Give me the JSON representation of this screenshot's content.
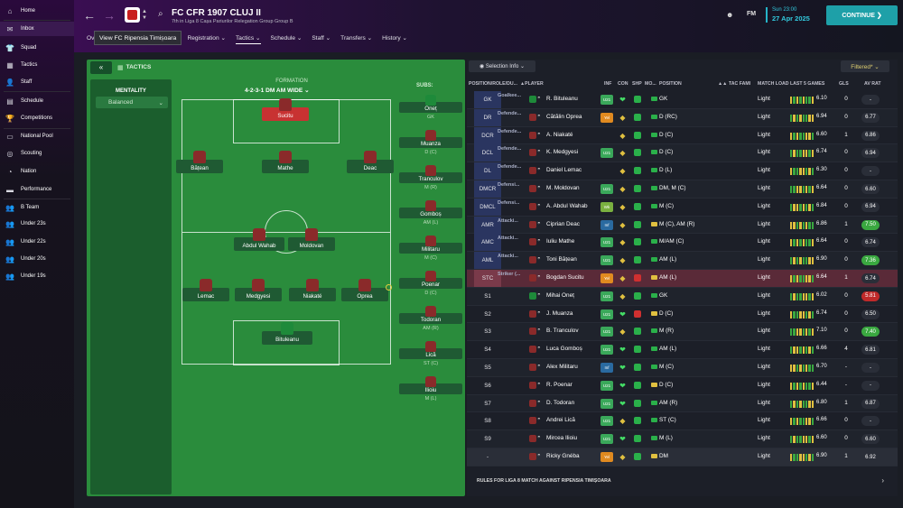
{
  "sidebar": {
    "items": [
      {
        "label": "Home",
        "icon": "home-icon",
        "glyph": "⌂"
      },
      {
        "label": "Inbox",
        "icon": "inbox-icon",
        "glyph": "✉"
      },
      {
        "label": "Squad",
        "icon": "squad-icon",
        "glyph": "👕"
      },
      {
        "label": "Tactics",
        "icon": "tactics-icon",
        "glyph": "▦"
      },
      {
        "label": "Staff",
        "icon": "staff-icon",
        "glyph": "👤"
      },
      {
        "label": "Schedule",
        "icon": "schedule-icon",
        "glyph": "▤"
      },
      {
        "label": "Competitions",
        "icon": "trophy-icon",
        "glyph": "🏆"
      },
      {
        "label": "National Pool",
        "icon": "national-pool-icon",
        "glyph": "▭"
      },
      {
        "label": "Scouting",
        "icon": "scouting-icon",
        "glyph": "◎"
      },
      {
        "label": "Nation",
        "icon": "nation-icon",
        "glyph": "◔"
      },
      {
        "label": "Performance",
        "icon": "performance-icon",
        "glyph": "▬"
      },
      {
        "label": "B Team",
        "icon": "b-team-icon",
        "glyph": "👥"
      },
      {
        "label": "Under 23s",
        "icon": "under-23s-icon",
        "glyph": "👥"
      },
      {
        "label": "Under 22s",
        "icon": "under-22s-icon",
        "glyph": "👥"
      },
      {
        "label": "Under 20s",
        "icon": "under-20s-icon",
        "glyph": "👥"
      },
      {
        "label": "Under 19s",
        "icon": "under-19s-icon",
        "glyph": "👥"
      }
    ]
  },
  "header": {
    "club_name": "FC CFR 1907 CLUJ II",
    "club_sub": "7th in Liga 8 Cașa Pariurilor Relegation Group Group B",
    "tooltip": "View FC Ripensia Timișoara",
    "tabs": [
      "Ov",
      "Registration ⌄",
      "Tactics ⌄",
      "Schedule ⌄",
      "Staff ⌄",
      "Transfers ⌄",
      "History ⌄"
    ],
    "date_time": "Sun 23:00",
    "date_day": "27 Apr 2025",
    "fm_label": "FM",
    "continue_label": "CONTINUE ❯"
  },
  "tactics": {
    "collapse": "«",
    "title": "TACTICS",
    "mentality_label": "MENTALITY",
    "mentality_value": "Balanced",
    "formation_label": "FORMATION",
    "formation_value": "4-2-3-1 DM AM WIDE ⌄",
    "subs_label": "SUBS:",
    "pitch_players": [
      {
        "name": "Sucitu",
        "gk": false,
        "red": true
      },
      {
        "name": "Bățean",
        "gk": false,
        "red": false
      },
      {
        "name": "Mathe",
        "gk": false,
        "red": false
      },
      {
        "name": "Deac",
        "gk": false,
        "red": false
      },
      {
        "name": "Abdul Wahab",
        "gk": false,
        "red": false
      },
      {
        "name": "Moldovan",
        "gk": false,
        "red": false
      },
      {
        "name": "Lemac",
        "gk": false,
        "red": false
      },
      {
        "name": "Medgyesi",
        "gk": false,
        "red": false
      },
      {
        "name": "Niakaté",
        "gk": false,
        "red": false
      },
      {
        "name": "Oprea",
        "gk": false,
        "red": false
      },
      {
        "name": "Bituleanu",
        "gk": true,
        "red": false
      }
    ],
    "subs": [
      {
        "name": "Oneț",
        "role": "GK",
        "gk": true
      },
      {
        "name": "Muanza",
        "role": "D (C)",
        "gk": false
      },
      {
        "name": "Tranculov",
        "role": "M (R)",
        "gk": false
      },
      {
        "name": "Gomboș",
        "role": "AM (L)",
        "gk": false
      },
      {
        "name": "Militaru",
        "role": "M (C)",
        "gk": false
      },
      {
        "name": "Poenar",
        "role": "D (C)",
        "gk": false
      },
      {
        "name": "Todoran",
        "role": "AM (R)",
        "gk": false
      },
      {
        "name": "Lică",
        "role": "ST (C)",
        "gk": false
      },
      {
        "name": "Ilioiu",
        "role": "M (L)",
        "gk": false
      }
    ]
  },
  "table": {
    "selection_info": "◉ Selection Info ⌄",
    "filtered": "Filtered* ⌄",
    "headers": [
      "POSITION/ROLE/DU...",
      "▲PLAYER",
      "INF",
      "CON",
      "SHP",
      "MO...",
      "POSITION",
      "▲▲",
      "TAC FAMI",
      "MATCH LOAD",
      "LAST 5 GAMES",
      "GLS",
      "AV RAT"
    ],
    "rows": [
      {
        "pos": "GK",
        "role": "Goalkee...",
        "name": "R. Bituleanu",
        "gk": true,
        "inf": "U21",
        "infc": "#3aa85a",
        "con": "❤",
        "conc": "#44dd66",
        "shp": "#2ab04a",
        "mo": "#2ab04a",
        "posn": "GK",
        "ml": "Light",
        "avr1": "6.10",
        "gls": "0",
        "avr": "-",
        "avrc": "#2a2e38"
      },
      {
        "pos": "DR",
        "role": "Defende...",
        "name": "Cătălin Oprea",
        "gk": false,
        "inf": "Yel",
        "infc": "#e08a20",
        "con": "◆",
        "conc": "#e0c040",
        "shp": "#2ab04a",
        "mo": "#2ab04a",
        "posn": "D (RC)",
        "ml": "Light",
        "avr1": "6.94",
        "gls": "0",
        "avr": "6.77",
        "avrc": "#2a2e38"
      },
      {
        "pos": "DCR",
        "role": "Defende...",
        "name": "A. Niakaté",
        "gk": false,
        "inf": "",
        "infc": "transparent",
        "con": "◆",
        "conc": "#e0c040",
        "shp": "#2ab04a",
        "mo": "#2ab04a",
        "posn": "D (C)",
        "ml": "Light",
        "avr1": "6.60",
        "gls": "1",
        "avr": "6.86",
        "avrc": "#2a2e38"
      },
      {
        "pos": "DCL",
        "role": "Defende...",
        "name": "K. Medgyesi",
        "gk": false,
        "inf": "U21",
        "infc": "#3aa85a",
        "con": "◆",
        "conc": "#e0c040",
        "shp": "#2ab04a",
        "mo": "#2ab04a",
        "posn": "D (C)",
        "ml": "Light",
        "avr1": "6.74",
        "gls": "0",
        "avr": "6.94",
        "avrc": "#2a2e38"
      },
      {
        "pos": "DL",
        "role": "Defende...",
        "name": "Daniel Lemac",
        "gk": false,
        "inf": "",
        "infc": "transparent",
        "con": "◆",
        "conc": "#e0c040",
        "shp": "#2ab04a",
        "mo": "#2ab04a",
        "posn": "D (L)",
        "ml": "Light",
        "avr1": "6.30",
        "gls": "0",
        "avr": "-",
        "avrc": "#2a2e38"
      },
      {
        "pos": "DMCR",
        "role": "Defensi...",
        "name": "M. Moldovan",
        "gk": false,
        "inf": "U21",
        "infc": "#3aa85a",
        "con": "◆",
        "conc": "#e0c040",
        "shp": "#2ab04a",
        "mo": "#2ab04a",
        "posn": "DM, M (C)",
        "ml": "Light",
        "avr1": "6.64",
        "gls": "0",
        "avr": "6.60",
        "avrc": "#2a2e38"
      },
      {
        "pos": "DMCL",
        "role": "Defensi...",
        "name": "A. Abdul Wahab",
        "gk": false,
        "inf": "Wk",
        "infc": "#7ab040",
        "con": "◆",
        "conc": "#e0c040",
        "shp": "#2ab04a",
        "mo": "#2ab04a",
        "posn": "M (C)",
        "ml": "Light",
        "avr1": "6.84",
        "gls": "0",
        "avr": "6.94",
        "avrc": "#2a2e38"
      },
      {
        "pos": "AMR",
        "role": "Attacki...",
        "name": "Ciprian Deac",
        "gk": false,
        "inf": "Inf",
        "infc": "#2a6aa0",
        "con": "◆",
        "conc": "#e0c040",
        "shp": "#2ab04a",
        "mo": "#e0c040",
        "posn": "M (C), AM (R)",
        "ml": "Light",
        "avr1": "6.86",
        "gls": "1",
        "avr": "7.50",
        "avrc": "#3aa840"
      },
      {
        "pos": "AMC",
        "role": "Attacki...",
        "name": "Iuliu Mathe",
        "gk": false,
        "inf": "U21",
        "infc": "#3aa85a",
        "con": "◆",
        "conc": "#e0c040",
        "shp": "#2ab04a",
        "mo": "#2ab04a",
        "posn": "M/AM (C)",
        "ml": "Light",
        "avr1": "6.64",
        "gls": "0",
        "avr": "6.74",
        "avrc": "#2a2e38"
      },
      {
        "pos": "AML",
        "role": "Attacki...",
        "name": "Toni Bățean",
        "gk": false,
        "inf": "U21",
        "infc": "#3aa85a",
        "con": "◆",
        "conc": "#e0c040",
        "shp": "#2ab04a",
        "mo": "#2ab04a",
        "posn": "AM (L)",
        "ml": "Light",
        "avr1": "6.90",
        "gls": "0",
        "avr": "7.36",
        "avrc": "#3aa840"
      },
      {
        "pos": "STC",
        "role": "Striker (...",
        "name": "Bogdan Sucitu",
        "gk": false,
        "inf": "Yel",
        "infc": "#e08a20",
        "con": "◆",
        "conc": "#e0c040",
        "shp": "#d03030",
        "mo": "#e0c040",
        "posn": "AM (L)",
        "ml": "Light",
        "avr1": "6.64",
        "gls": "1",
        "avr": "6.74",
        "avrc": "#2a2e38"
      },
      {
        "pos": "S1",
        "role": "",
        "name": "Mihai Oneț",
        "gk": true,
        "inf": "U21",
        "infc": "#3aa85a",
        "con": "◆",
        "conc": "#e0c040",
        "shp": "#2ab04a",
        "mo": "#2ab04a",
        "posn": "GK",
        "ml": "Light",
        "avr1": "6.02",
        "gls": "0",
        "avr": "5.81",
        "avrc": "#c02a2a"
      },
      {
        "pos": "S2",
        "role": "",
        "name": "J. Muanza",
        "gk": false,
        "inf": "U21",
        "infc": "#3aa85a",
        "con": "❤",
        "conc": "#44dd66",
        "shp": "#d03030",
        "mo": "#e0c040",
        "posn": "D (C)",
        "ml": "Light",
        "avr1": "6.74",
        "gls": "0",
        "avr": "6.50",
        "avrc": "#2a2e38"
      },
      {
        "pos": "S3",
        "role": "",
        "name": "B. Tranculov",
        "gk": false,
        "inf": "U21",
        "infc": "#3aa85a",
        "con": "◆",
        "conc": "#e0c040",
        "shp": "#2ab04a",
        "mo": "#2ab04a",
        "posn": "M (R)",
        "ml": "Light",
        "avr1": "7.10",
        "gls": "0",
        "avr": "7.40",
        "avrc": "#3aa840"
      },
      {
        "pos": "S4",
        "role": "",
        "name": "Luca Gomboș",
        "gk": false,
        "inf": "U21",
        "infc": "#3aa85a",
        "con": "❤",
        "conc": "#44dd66",
        "shp": "#2ab04a",
        "mo": "#2ab04a",
        "posn": "AM (L)",
        "ml": "Light",
        "avr1": "6.66",
        "gls": "4",
        "avr": "6.81",
        "avrc": "#2a2e38"
      },
      {
        "pos": "S5",
        "role": "",
        "name": "Alex Militaru",
        "gk": false,
        "inf": "Inf",
        "infc": "#2a6aa0",
        "con": "❤",
        "conc": "#44dd66",
        "shp": "#2ab04a",
        "mo": "#2ab04a",
        "posn": "M (C)",
        "ml": "Light",
        "avr1": "6.70",
        "gls": "-",
        "avr": "-",
        "avrc": "#2a2e38"
      },
      {
        "pos": "S6",
        "role": "",
        "name": "R. Poenar",
        "gk": false,
        "inf": "U21",
        "infc": "#3aa85a",
        "con": "❤",
        "conc": "#44dd66",
        "shp": "#2ab04a",
        "mo": "#e0c040",
        "posn": "D (C)",
        "ml": "Light",
        "avr1": "6.44",
        "gls": "-",
        "avr": "-",
        "avrc": "#2a2e38"
      },
      {
        "pos": "S7",
        "role": "",
        "name": "D. Todoran",
        "gk": false,
        "inf": "U21",
        "infc": "#3aa85a",
        "con": "❤",
        "conc": "#44dd66",
        "shp": "#2ab04a",
        "mo": "#2ab04a",
        "posn": "AM (R)",
        "ml": "Light",
        "avr1": "6.80",
        "gls": "1",
        "avr": "6.87",
        "avrc": "#2a2e38"
      },
      {
        "pos": "S8",
        "role": "",
        "name": "Andrei Lică",
        "gk": false,
        "inf": "U21",
        "infc": "#3aa85a",
        "con": "◆",
        "conc": "#e0c040",
        "shp": "#2ab04a",
        "mo": "#2ab04a",
        "posn": "ST (C)",
        "ml": "Light",
        "avr1": "6.66",
        "gls": "0",
        "avr": "-",
        "avrc": "#2a2e38"
      },
      {
        "pos": "S9",
        "role": "",
        "name": "Mircea Ilioiu",
        "gk": false,
        "inf": "U21",
        "infc": "#3aa85a",
        "con": "❤",
        "conc": "#44dd66",
        "shp": "#2ab04a",
        "mo": "#2ab04a",
        "posn": "M (L)",
        "ml": "Light",
        "avr1": "6.60",
        "gls": "0",
        "avr": "6.60",
        "avrc": "#2a2e38"
      },
      {
        "pos": "-",
        "role": "",
        "name": "Ricky Gnéba",
        "gk": false,
        "inf": "Yel",
        "infc": "#e08a20",
        "con": "◆",
        "conc": "#e0c040",
        "shp": "#2ab04a",
        "mo": "#e0c040",
        "posn": "DM",
        "ml": "Light",
        "avr1": "6.90",
        "gls": "1",
        "avr": "6.92",
        "avrc": "#2a2e38"
      }
    ],
    "rules": "RULES FOR LIGA 8 MATCH AGAINST RIPENSIA TIMIȘOARA"
  }
}
